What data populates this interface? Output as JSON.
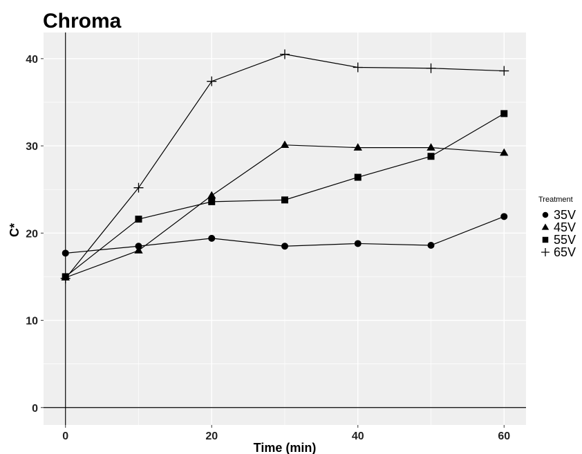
{
  "chart_data": {
    "type": "line",
    "title": "Chroma",
    "xlabel": "Time (min)",
    "ylabel": "C*",
    "x": [
      0,
      10,
      20,
      30,
      40,
      50,
      60
    ],
    "xlim": [
      -3,
      63
    ],
    "ylim": [
      -2,
      43
    ],
    "xticks": [
      0,
      20,
      40,
      60
    ],
    "yticks": [
      0,
      10,
      20,
      30,
      40
    ],
    "grid": true,
    "legend_title": "Treatment",
    "legend_position": "right",
    "series": [
      {
        "name": "35V",
        "marker": "circle",
        "values": [
          17.7,
          18.5,
          19.4,
          18.5,
          18.8,
          18.6,
          21.9
        ]
      },
      {
        "name": "45V",
        "marker": "triangle",
        "values": [
          14.9,
          18.0,
          24.3,
          30.1,
          29.8,
          29.8,
          29.2
        ]
      },
      {
        "name": "55V",
        "marker": "square",
        "values": [
          15.0,
          21.6,
          23.6,
          23.8,
          26.4,
          28.8,
          33.7
        ]
      },
      {
        "name": "65V",
        "marker": "plus",
        "values": [
          14.8,
          25.2,
          37.4,
          40.5,
          39.0,
          38.9,
          38.6
        ]
      }
    ],
    "colors": {
      "panel": "#efefef",
      "grid": "#ffffff",
      "line": "#000000",
      "marker": "#000000"
    }
  }
}
